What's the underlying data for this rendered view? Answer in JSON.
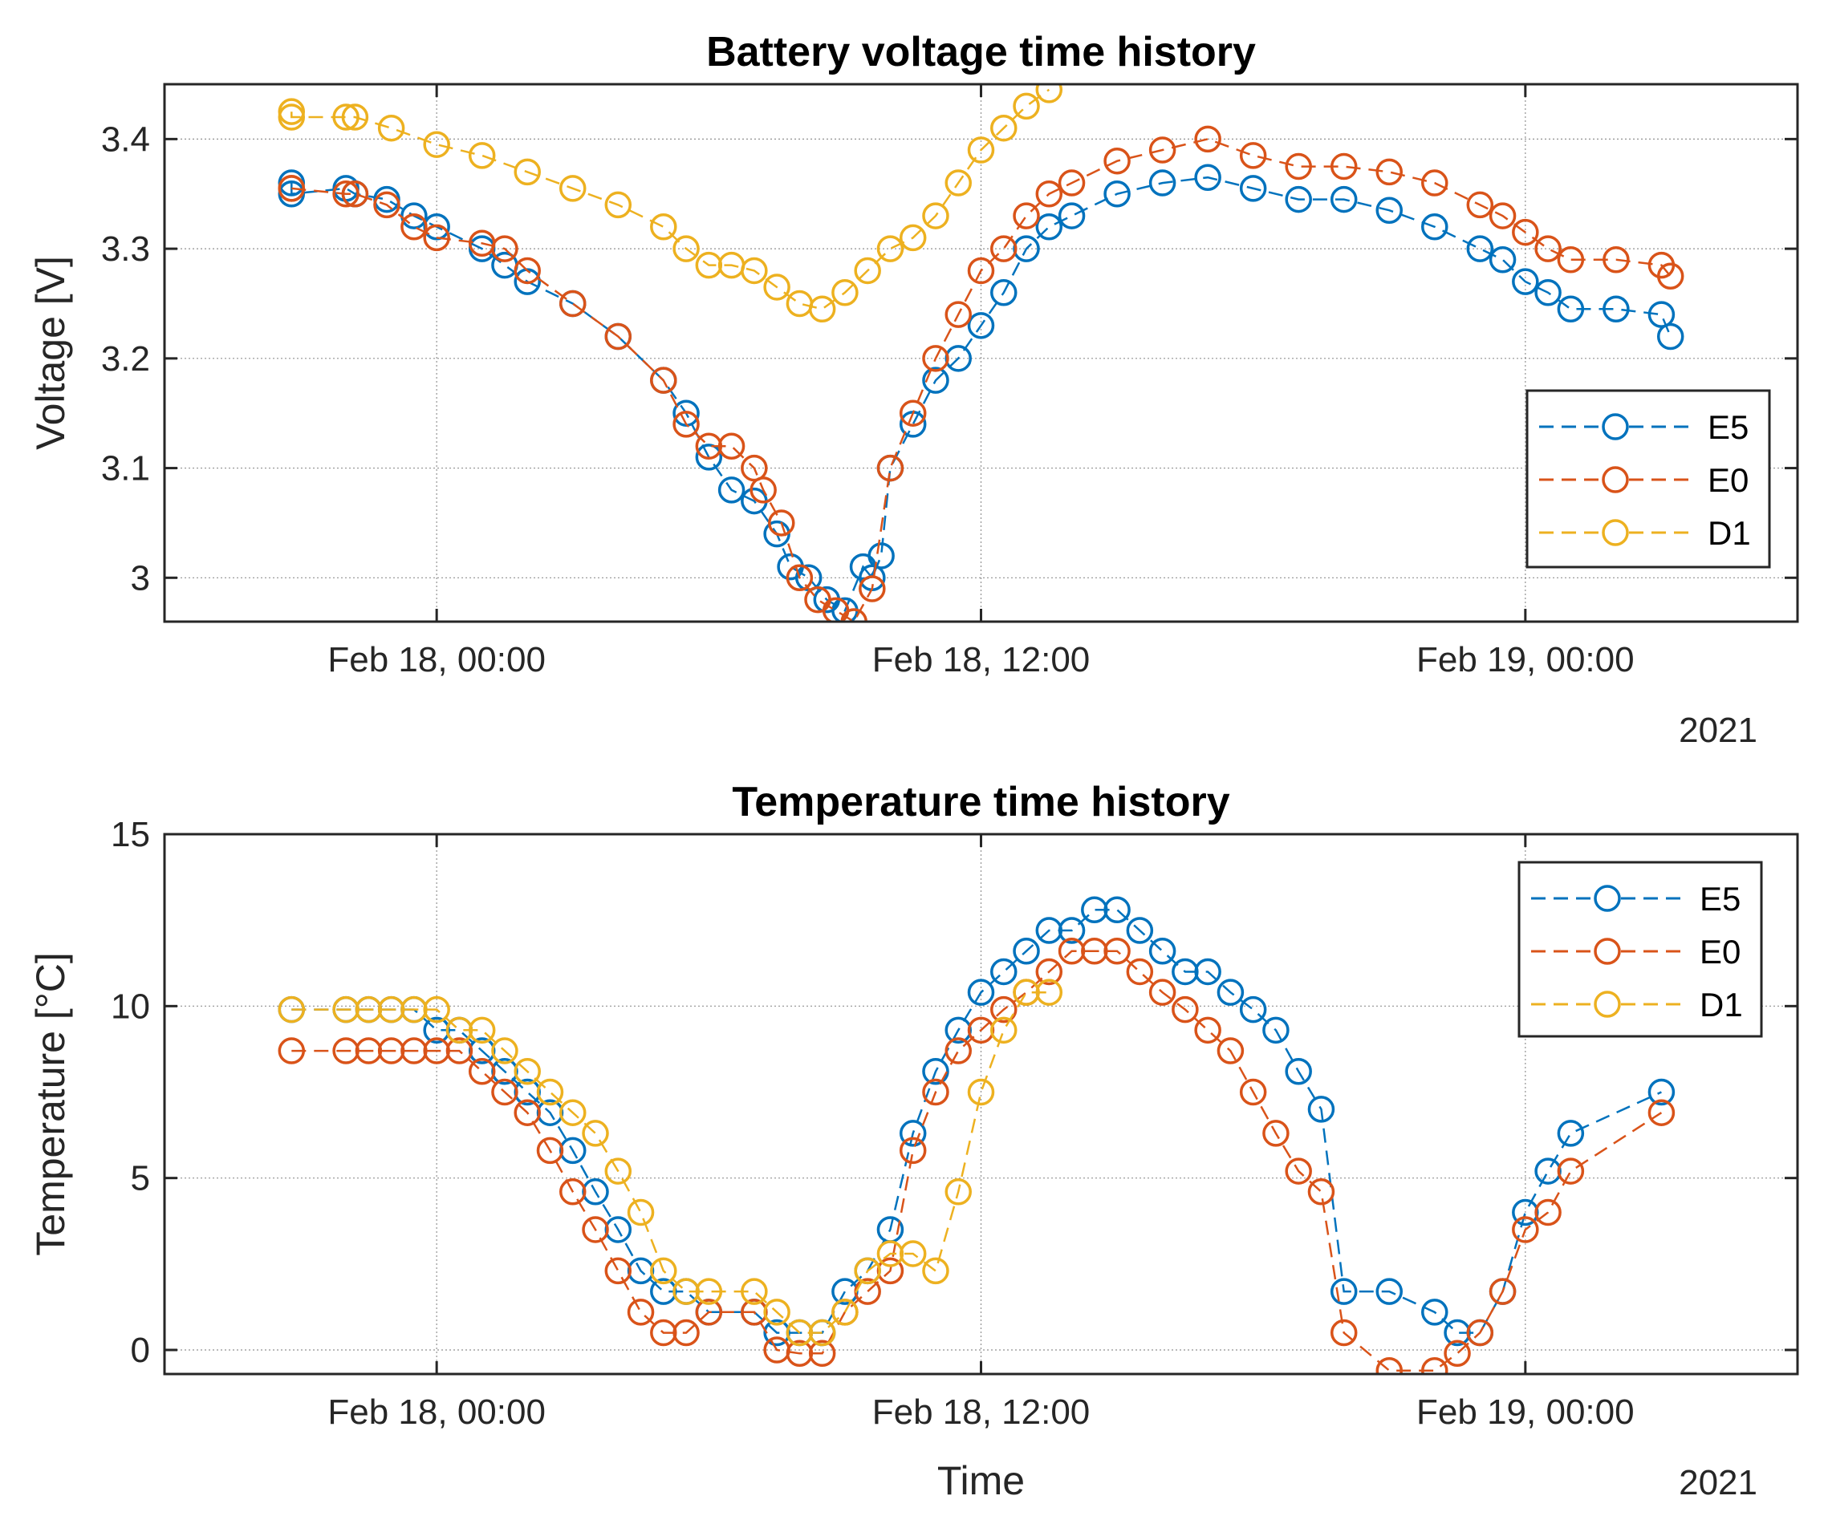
{
  "chart_data": [
    {
      "type": "line",
      "title": "Battery voltage time history",
      "xlabel": "",
      "ylabel": "Voltage [V]",
      "x_unit": "hours since Feb 18, 00:00",
      "xlim": [
        -6,
        30
      ],
      "ylim": [
        2.96,
        3.45
      ],
      "x_ticks": [
        0,
        12,
        24
      ],
      "x_tick_labels": [
        "Feb 18, 00:00",
        "Feb 18, 12:00",
        "Feb 19, 00:00"
      ],
      "y_ticks": [
        3.0,
        3.1,
        3.2,
        3.3,
        3.4
      ],
      "y_tick_labels": [
        "3",
        "3.1",
        "3.2",
        "3.3",
        "3.4"
      ],
      "year_label": "2021",
      "grid": "major x and y gridlines",
      "legend_position": "right",
      "series": [
        {
          "name": "E5",
          "color": "#0072BD",
          "x": [
            -3.2,
            -3.2,
            -2,
            -1.8,
            -1.1,
            -0.5,
            0,
            1,
            1.5,
            2,
            3,
            4,
            5,
            5.5,
            6,
            6.5,
            7,
            7.5,
            7.8,
            8.2,
            8.6,
            9.0,
            9.4,
            9.6,
            9.8,
            10,
            10.5,
            11,
            11.5,
            12,
            12.5,
            13,
            13.5,
            14,
            15,
            16,
            17,
            18,
            19,
            20,
            21,
            22,
            23,
            23.5,
            24,
            24.5,
            25,
            26,
            27,
            27.2
          ],
          "y": [
            3.36,
            3.35,
            3.355,
            3.35,
            3.345,
            3.33,
            3.32,
            3.3,
            3.285,
            3.27,
            3.25,
            3.22,
            3.18,
            3.15,
            3.11,
            3.08,
            3.07,
            3.04,
            3.01,
            3.0,
            2.98,
            2.97,
            3.01,
            3.0,
            3.02,
            3.1,
            3.14,
            3.18,
            3.2,
            3.23,
            3.26,
            3.3,
            3.32,
            3.33,
            3.35,
            3.36,
            3.365,
            3.355,
            3.345,
            3.345,
            3.335,
            3.32,
            3.3,
            3.29,
            3.27,
            3.26,
            3.245,
            3.245,
            3.24,
            3.22
          ]
        },
        {
          "name": "E0",
          "color": "#D95319",
          "x": [
            -3.2,
            -3.2,
            -2,
            -1.8,
            -1.1,
            -0.5,
            0,
            1,
            1.5,
            2,
            3,
            4,
            5,
            5.5,
            6,
            6.5,
            7,
            7.2,
            7.6,
            8,
            8.4,
            8.8,
            9.2,
            9.6,
            10,
            10.5,
            11,
            11.5,
            12,
            12.5,
            13,
            13.5,
            14,
            15,
            16,
            17,
            18,
            19,
            20,
            21,
            22,
            23,
            23.5,
            24,
            24.5,
            25,
            26,
            27,
            27.2
          ],
          "y": [
            3.355,
            3.355,
            3.35,
            3.35,
            3.34,
            3.32,
            3.31,
            3.305,
            3.3,
            3.28,
            3.25,
            3.22,
            3.18,
            3.14,
            3.12,
            3.12,
            3.1,
            3.08,
            3.05,
            3.0,
            2.98,
            2.97,
            2.96,
            2.99,
            3.1,
            3.15,
            3.2,
            3.24,
            3.28,
            3.3,
            3.33,
            3.35,
            3.36,
            3.38,
            3.39,
            3.4,
            3.385,
            3.375,
            3.375,
            3.37,
            3.36,
            3.34,
            3.33,
            3.315,
            3.3,
            3.29,
            3.29,
            3.285,
            3.275
          ]
        },
        {
          "name": "D1",
          "color": "#EDB120",
          "x": [
            -3.2,
            -3.2,
            -2,
            -1.8,
            -1,
            0,
            1,
            2,
            3,
            4,
            5,
            5.5,
            6,
            6.5,
            7,
            7.5,
            8,
            8.5,
            9,
            9.5,
            10,
            10.5,
            11,
            11.5,
            12,
            12.5,
            13,
            13.5
          ],
          "y": [
            3.425,
            3.42,
            3.42,
            3.42,
            3.41,
            3.395,
            3.385,
            3.37,
            3.355,
            3.34,
            3.32,
            3.3,
            3.285,
            3.285,
            3.28,
            3.265,
            3.25,
            3.245,
            3.26,
            3.28,
            3.3,
            3.31,
            3.33,
            3.36,
            3.39,
            3.41,
            3.43,
            3.445
          ]
        }
      ]
    },
    {
      "type": "line",
      "title": "Temperature time history",
      "xlabel": "Time",
      "ylabel": "Temperature [°C]",
      "x_unit": "hours since Feb 18, 00:00",
      "xlim": [
        -6,
        30
      ],
      "ylim": [
        -0.7,
        15
      ],
      "x_ticks": [
        0,
        12,
        24
      ],
      "x_tick_labels": [
        "Feb 18, 00:00",
        "Feb 18, 12:00",
        "Feb 19, 00:00"
      ],
      "y_ticks": [
        0,
        5,
        10,
        15
      ],
      "y_tick_labels": [
        "0",
        "5",
        "10",
        "15"
      ],
      "year_label": "2021",
      "grid": "major x and y gridlines",
      "legend_position": "top-right",
      "series": [
        {
          "name": "E5",
          "color": "#0072BD",
          "x": [
            -3.2,
            -2,
            -1.5,
            -1,
            -0.5,
            0,
            0.5,
            1,
            1.5,
            2,
            2.5,
            3,
            3.5,
            4,
            4.5,
            5,
            5.5,
            6,
            7,
            7.5,
            8,
            8.5,
            9,
            9.5,
            10,
            10.5,
            11,
            11.5,
            12,
            12.5,
            13,
            13.5,
            14,
            14.5,
            15,
            15.5,
            16,
            16.5,
            17,
            17.5,
            18,
            18.5,
            19,
            19.5,
            20,
            21,
            22,
            22.5,
            23,
            23.5,
            24,
            24.5,
            25,
            27
          ],
          "y": [
            9.9,
            9.9,
            9.9,
            9.9,
            9.9,
            9.3,
            9.3,
            8.7,
            8.1,
            7.5,
            6.9,
            5.8,
            4.6,
            3.5,
            2.3,
            1.7,
            1.7,
            1.1,
            1.1,
            0.5,
            0.5,
            0.5,
            1.7,
            2.3,
            3.5,
            6.3,
            8.1,
            9.3,
            10.4,
            11.0,
            11.6,
            12.2,
            12.2,
            12.8,
            12.8,
            12.2,
            11.6,
            11.0,
            11.0,
            10.4,
            9.9,
            9.3,
            8.1,
            7.0,
            1.7,
            1.7,
            1.1,
            0.5,
            0.5,
            1.7,
            4.0,
            5.2,
            6.3,
            7.5
          ]
        },
        {
          "name": "E0",
          "color": "#D95319",
          "x": [
            -3.2,
            -2,
            -1.5,
            -1,
            -0.5,
            0,
            0.5,
            1,
            1.5,
            2,
            2.5,
            3,
            3.5,
            4,
            4.5,
            5,
            5.5,
            6,
            7,
            7.5,
            8,
            8.5,
            9,
            9.5,
            10,
            10.5,
            11,
            11.5,
            12,
            12.5,
            13,
            13.5,
            14,
            14.5,
            15,
            15.5,
            16,
            16.5,
            17,
            17.5,
            18,
            18.5,
            19,
            19.5,
            20,
            21,
            22,
            22.5,
            23,
            23.5,
            24,
            24.5,
            25,
            27
          ],
          "y": [
            8.7,
            8.7,
            8.7,
            8.7,
            8.7,
            8.7,
            8.7,
            8.1,
            7.5,
            6.9,
            5.8,
            4.6,
            3.5,
            2.3,
            1.1,
            0.5,
            0.5,
            1.1,
            1.1,
            0.0,
            -0.1,
            -0.1,
            1.1,
            1.7,
            2.3,
            5.8,
            7.5,
            8.7,
            9.3,
            9.9,
            10.4,
            11.0,
            11.6,
            11.6,
            11.6,
            11.0,
            10.4,
            9.9,
            9.3,
            8.7,
            7.5,
            6.3,
            5.2,
            4.6,
            0.5,
            -0.6,
            -0.6,
            -0.1,
            0.5,
            1.7,
            3.5,
            4.0,
            5.2,
            6.9
          ]
        },
        {
          "name": "D1",
          "color": "#EDB120",
          "x": [
            -3.2,
            -2,
            -1.5,
            -1,
            -0.5,
            0,
            0.5,
            1,
            1.5,
            2,
            2.5,
            3,
            3.5,
            4,
            4.5,
            5,
            5.5,
            6,
            7,
            7.5,
            8,
            8.5,
            9,
            9.5,
            10,
            10.5,
            11,
            11.5,
            12,
            12.5,
            13,
            13.5
          ],
          "y": [
            9.9,
            9.9,
            9.9,
            9.9,
            9.9,
            9.9,
            9.3,
            9.3,
            8.7,
            8.1,
            7.5,
            6.9,
            6.3,
            5.2,
            4.0,
            2.3,
            1.7,
            1.7,
            1.7,
            1.1,
            0.5,
            0.5,
            1.1,
            2.3,
            2.8,
            2.8,
            2.3,
            4.6,
            7.5,
            9.3,
            10.4,
            10.4
          ]
        }
      ]
    }
  ]
}
